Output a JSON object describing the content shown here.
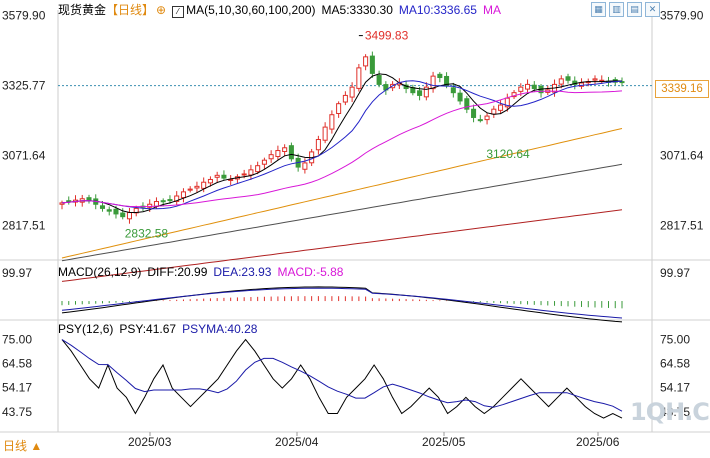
{
  "header": {
    "instrument": "现货黄金",
    "timeframe": "【日线】",
    "ma_label": "MA(5,10,30,60,100,200)",
    "ma5": "MA5:3330.30",
    "ma10": "MA10:3336.65",
    "ma_extra": "MA"
  },
  "macd_header": {
    "label": "MACD(26,12,9)",
    "diff": "DIFF:20.99",
    "dea": "DEA:23.93",
    "macd": "MACD:-5.88"
  },
  "psy_header": {
    "label": "PSY(12,6)",
    "psy": "PSY:41.67",
    "psyma": "PSYMA:40.28"
  },
  "price_axis": {
    "ticks": [
      "3579.90",
      "3325.77",
      "3071.64",
      "2817.51"
    ],
    "current_price": "3339.16",
    "hidden_right_label": "3325.77"
  },
  "macd_axis": {
    "ticks": [
      "99.97"
    ]
  },
  "psy_axis": {
    "ticks": [
      "75.00",
      "64.58",
      "54.17",
      "43.75"
    ]
  },
  "annotations": {
    "high": "3499.83",
    "low_mid": "3120.64",
    "low_left": "2832.58"
  },
  "x_axis": {
    "labels": [
      "2025/03",
      "2025/04",
      "2025/05",
      "2025/06"
    ]
  },
  "footer": {
    "timeframe_button": "日线 ▲"
  },
  "watermark": "1QH.CN",
  "colors": {
    "up": "#e0302a",
    "down": "#3a9a3a",
    "ma5": "#000000",
    "ma10": "#2424c8",
    "ma30": "#d818d8",
    "ma60": "#e0900c",
    "ma100": "#505050",
    "ma200": "#b02020",
    "diff": "#000000",
    "dea": "#1a1aa8",
    "psy": "#000000",
    "psyma": "#1a1aa8"
  },
  "chart_data": {
    "type": "line",
    "price_range": [
      2700,
      3600
    ],
    "candles_close": [
      2900,
      2905,
      2910,
      2915,
      2908,
      2895,
      2880,
      2870,
      2860,
      2850,
      2865,
      2880,
      2885,
      2895,
      2905,
      2905,
      2910,
      2925,
      2940,
      2950,
      2960,
      2975,
      2985,
      3000,
      2990,
      2985,
      2995,
      3005,
      3020,
      3035,
      3055,
      3075,
      3090,
      3100,
      3060,
      3030,
      3045,
      3085,
      3130,
      3175,
      3220,
      3260,
      3290,
      3320,
      3390,
      3430,
      3370,
      3330,
      3310,
      3330,
      3335,
      3315,
      3300,
      3290,
      3320,
      3360,
      3355,
      3325,
      3300,
      3270,
      3240,
      3210,
      3200,
      3215,
      3240,
      3255,
      3280,
      3300,
      3320,
      3330,
      3315,
      3300,
      3310,
      3330,
      3350,
      3345,
      3330,
      3335,
      3340,
      3350,
      3345,
      3340,
      3338,
      3339
    ],
    "macd_range": [
      -60,
      110
    ],
    "psy_range": [
      35,
      80
    ],
    "psy_values": [
      75,
      70,
      64,
      58,
      54,
      64,
      54,
      50,
      43,
      50,
      58,
      64,
      54,
      50,
      46,
      50,
      54,
      58,
      64,
      70,
      75,
      70,
      64,
      58,
      54,
      58,
      64,
      58,
      50,
      43,
      43,
      50,
      54,
      58,
      64,
      58,
      50,
      43,
      46,
      50,
      54,
      50,
      43,
      46,
      50,
      46,
      43,
      46,
      50,
      54,
      58,
      54,
      50,
      46,
      50,
      54,
      50,
      46,
      43,
      41,
      43,
      41
    ]
  }
}
